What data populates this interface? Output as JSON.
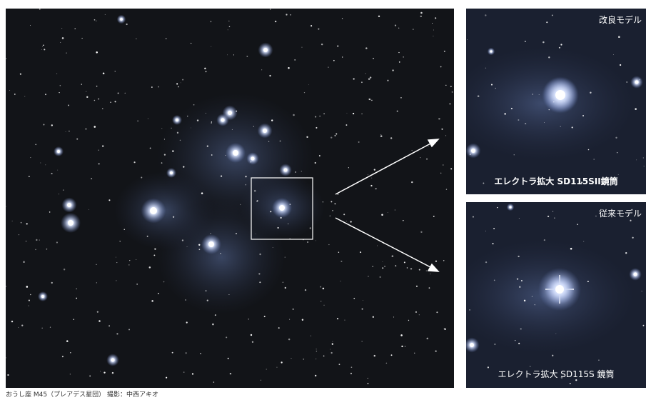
{
  "panels": {
    "improved": {
      "title": "改良モデル",
      "caption": "エレクトラ拡大 SD115SII鏡筒"
    },
    "previous": {
      "title": "従来モデル",
      "caption": "エレクトラ拡大 SD115S 鏡筒"
    }
  },
  "photo_caption": "おうし座 M45（プレアデス星団） 撮影：中西アキオ"
}
